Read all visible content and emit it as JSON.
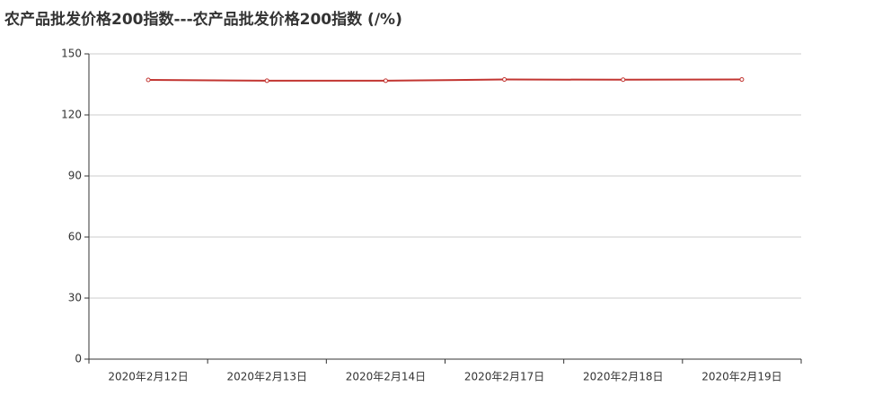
{
  "chart_data": {
    "type": "line",
    "title": "农产品批发价格200指数---农产品批发价格200指数 (/%)",
    "categories": [
      "2020年2月12日",
      "2020年2月13日",
      "2020年2月14日",
      "2020年2月17日",
      "2020年2月18日",
      "2020年2月19日"
    ],
    "series": [
      {
        "name": "农产品批发价格200指数",
        "color": "#c23531",
        "values": [
          137.2,
          136.8,
          136.8,
          137.4,
          137.3,
          137.4
        ]
      }
    ],
    "ylim": [
      0,
      150
    ],
    "yticks": [
      0,
      30,
      60,
      90,
      120,
      150
    ],
    "grid": true
  }
}
